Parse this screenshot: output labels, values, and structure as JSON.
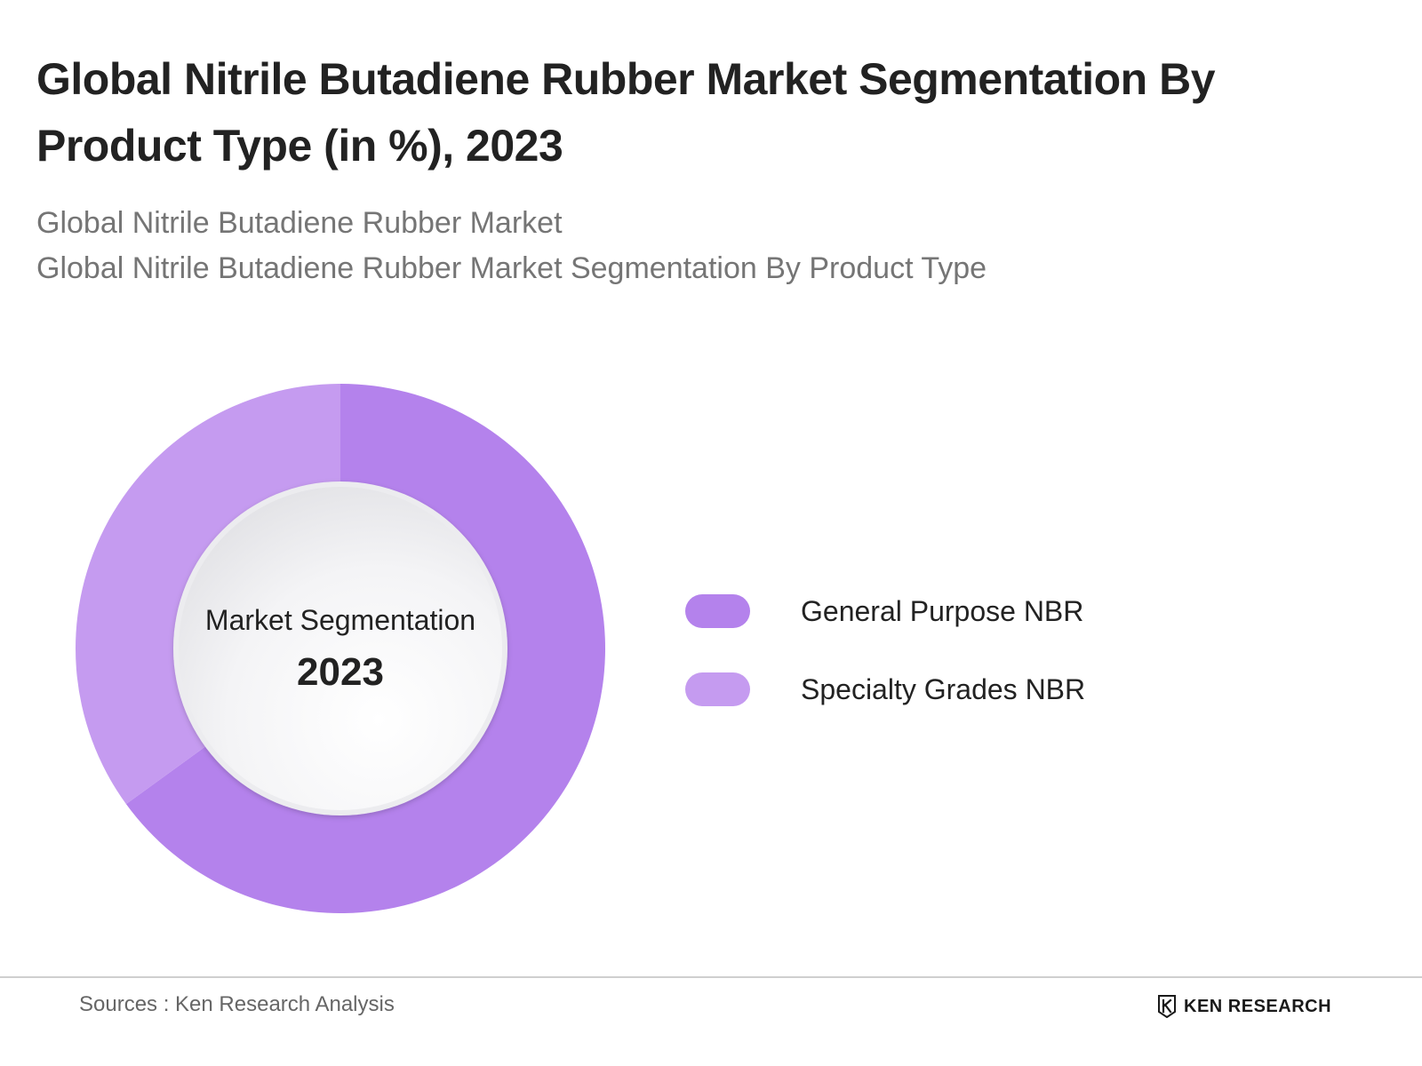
{
  "header": {
    "title": "Global Nitrile Butadiene Rubber Market Segmentation By Product Type (in %), 2023",
    "subtitle_lines": [
      "Global Nitrile Butadiene Rubber Market",
      "Global Nitrile Butadiene Rubber Market Segmentation By Product Type"
    ]
  },
  "chart_data": {
    "type": "pie",
    "variant": "donut",
    "title": "Global Nitrile Butadiene Rubber Market Segmentation By Product Type (in %), 2023",
    "center_label": "Market Segmentation",
    "center_value": "2023",
    "unit": "%",
    "categories": [
      "General Purpose NBR",
      "Specialty Grades NBR"
    ],
    "values": [
      65,
      35
    ],
    "colors": [
      "#b482ec",
      "#c59bf0"
    ],
    "legend_position": "right"
  },
  "footer": {
    "source": "Sources : Ken Research Analysis",
    "logo_text": "KEN RESEARCH",
    "logo_icon": "ken-research-logo-icon"
  }
}
